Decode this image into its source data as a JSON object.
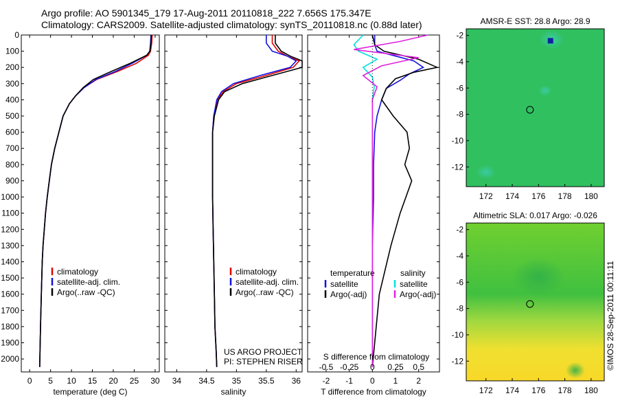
{
  "header": {
    "title_line1": "Argo profile: AO 5901345_179 17-Aug-2011 20110818_222 7.656S 175.347E",
    "title_line2": "Climatology: CARS2009. Satellite-adjusted climatology: synTS_20110818.nc (0.88d later)"
  },
  "colors": {
    "climatology": "#e00000",
    "satellite": "#1010e0",
    "argo": "#000000",
    "salinity_satellite": "#00e0e0",
    "salinity_argo": "#e020e0"
  },
  "chart_data": [
    {
      "type": "line",
      "panel": "temperature",
      "xlabel": "temperature (deg C)",
      "xlim": [
        -2,
        31
      ],
      "xticks": [
        0,
        5,
        10,
        15,
        20,
        25,
        30
      ],
      "ylim": [
        2080,
        0
      ],
      "yticks": [
        0,
        100,
        200,
        300,
        400,
        500,
        600,
        700,
        800,
        900,
        1000,
        1100,
        1200,
        1300,
        1400,
        1500,
        1600,
        1700,
        1800,
        1900,
        2000
      ],
      "legend": [
        "climatology",
        "satellite-adj. clim.",
        "Argo(..raw -QC)"
      ],
      "series": [
        {
          "name": "climatology",
          "x": [
            29.3,
            29.2,
            28.9,
            28.4,
            25.5,
            21,
            16,
            13,
            11,
            9.5,
            8,
            7,
            6,
            5.2,
            4.7,
            4.2,
            3.8,
            3.5,
            3.2,
            3.0,
            2.8,
            2.6,
            2.4
          ],
          "y": [
            0,
            50,
            100,
            125,
            175,
            225,
            275,
            325,
            375,
            425,
            500,
            600,
            700,
            800,
            900,
            1000,
            1100,
            1200,
            1300,
            1400,
            1600,
            1800,
            2050
          ]
        },
        {
          "name": "satellite-adj. clim.",
          "x": [
            29.0,
            28.9,
            28.7,
            28.0,
            24.5,
            20.5,
            15.8,
            13,
            11,
            9.5,
            8,
            7,
            6,
            5.2,
            4.7,
            4.2,
            3.8,
            3.5,
            3.2,
            3.0,
            2.8,
            2.6,
            2.4
          ],
          "y": [
            0,
            50,
            100,
            125,
            175,
            225,
            275,
            325,
            375,
            425,
            500,
            600,
            700,
            800,
            900,
            1000,
            1100,
            1200,
            1300,
            1400,
            1600,
            1800,
            2050
          ]
        },
        {
          "name": "Argo(..raw -QC)",
          "x": [
            29.1,
            29.0,
            28.8,
            28.0,
            24.0,
            19.5,
            15.2,
            12.8,
            11,
            9.5,
            8,
            7,
            6,
            5.2,
            4.7,
            4.2,
            3.8,
            3.5,
            3.2,
            3.0,
            2.8,
            2.6,
            2.4
          ],
          "y": [
            0,
            50,
            100,
            125,
            175,
            225,
            275,
            325,
            375,
            425,
            500,
            600,
            700,
            800,
            900,
            1000,
            1100,
            1200,
            1300,
            1400,
            1600,
            1800,
            2050
          ]
        }
      ]
    },
    {
      "type": "line",
      "panel": "salinity",
      "xlabel": "salinity",
      "xlim": [
        33.8,
        36.1
      ],
      "xticks": [
        34,
        34.5,
        35,
        35.5,
        36
      ],
      "xtick_labels": [
        "34",
        "34.5",
        "35",
        "35.5",
        "36"
      ],
      "legend": [
        "climatology",
        "satellite-adj. clim.",
        "Argo(..raw -QC)"
      ],
      "annotation": [
        "US ARGO PROJECT",
        "PI: STEPHEN RISER"
      ],
      "series": [
        {
          "name": "climatology",
          "x": [
            35.6,
            35.6,
            35.7,
            35.85,
            36.05,
            35.95,
            35.5,
            35.0,
            34.78,
            34.68,
            34.62,
            34.6,
            34.6,
            34.6,
            34.6,
            34.61,
            34.62,
            34.63,
            34.64,
            34.66,
            34.67
          ],
          "y": [
            0,
            50,
            100,
            130,
            160,
            200,
            250,
            300,
            350,
            400,
            500,
            600,
            700,
            800,
            1000,
            1200,
            1400,
            1600,
            1800,
            1950,
            2050
          ]
        },
        {
          "name": "satellite-adj. clim.",
          "x": [
            35.5,
            35.5,
            35.6,
            35.85,
            36.0,
            35.9,
            35.4,
            34.95,
            34.75,
            34.67,
            34.62,
            34.6,
            34.6,
            34.6,
            34.6,
            34.61,
            34.62,
            34.63,
            34.64,
            34.66,
            34.67
          ],
          "y": [
            0,
            50,
            100,
            130,
            160,
            200,
            250,
            300,
            350,
            400,
            500,
            600,
            700,
            800,
            1000,
            1200,
            1400,
            1600,
            1800,
            1950,
            2050
          ]
        },
        {
          "name": "Argo(..raw -QC)",
          "x": [
            35.65,
            35.65,
            35.75,
            35.9,
            36.1,
            36.1,
            35.6,
            35.1,
            34.8,
            34.7,
            34.63,
            34.6,
            34.6,
            34.6,
            34.6,
            34.61,
            34.62,
            34.63,
            34.64,
            34.66,
            34.67
          ],
          "y": [
            0,
            50,
            100,
            130,
            160,
            200,
            250,
            300,
            350,
            400,
            500,
            600,
            700,
            800,
            1000,
            1200,
            1400,
            1600,
            1800,
            1950,
            2050
          ]
        }
      ]
    },
    {
      "type": "line",
      "panel": "difference",
      "xlabel": "T difference from climatology",
      "xlabel2": "S difference from climatology",
      "xlim": [
        -2.8,
        2.9
      ],
      "xticks": [
        -2,
        -1,
        0,
        1,
        2
      ],
      "xticks_s": [
        -0.5,
        -0.25,
        0,
        0.25,
        0.5
      ],
      "xticks_s_labels": [
        "-0.5",
        "-0.25",
        "0",
        "0.25",
        "0.5"
      ],
      "legend_temperature_header": "temperature",
      "legend_salinity_header": "salinity",
      "legend_temperature": [
        "satellite",
        "Argo(-adj)"
      ],
      "legend_salinity": [
        "satellite",
        "Argo(-adj)"
      ],
      "series": [
        {
          "name": "temperature satellite",
          "x": [
            0.1,
            0.1,
            0.2,
            1.0,
            1.8,
            2.2,
            1.6,
            1.2,
            0.6,
            0.4,
            0.2,
            0.1,
            0.05,
            0.05,
            0.0,
            0.0,
            0.0,
            0.0
          ],
          "y": [
            0,
            60,
            100,
            130,
            160,
            200,
            240,
            280,
            330,
            400,
            500,
            600,
            800,
            1000,
            1300,
            1600,
            1900,
            2050
          ]
        },
        {
          "name": "temperature Argo(-adj)",
          "x": [
            0.0,
            0.1,
            0.5,
            2.0,
            2.8,
            1.8,
            1.0,
            0.6,
            0.4,
            0.9,
            1.5,
            1.6,
            1.4,
            1.7,
            1.2,
            0.8,
            0.3,
            0.0
          ],
          "y": [
            0,
            60,
            100,
            150,
            200,
            230,
            270,
            330,
            400,
            500,
            600,
            700,
            800,
            900,
            1100,
            1300,
            1600,
            2050
          ]
        },
        {
          "name": "salinity satellite",
          "x": [
            -0.1,
            -0.2,
            -0.15,
            0.05,
            -0.1,
            0.0,
            0.02,
            0.0,
            0.0,
            0.0,
            0.0,
            0.0
          ],
          "y": [
            0,
            60,
            100,
            150,
            200,
            260,
            320,
            400,
            600,
            1000,
            1500,
            2050
          ]
        },
        {
          "name": "salinity Argo(-adj)",
          "x": [
            0.6,
            0.3,
            -0.2,
            0.5,
            0.1,
            -0.1,
            0.05,
            0.0,
            0.0,
            0.0,
            0.0,
            0.0
          ],
          "y": [
            0,
            40,
            90,
            140,
            190,
            250,
            320,
            400,
            600,
            1000,
            1500,
            2050
          ]
        }
      ]
    },
    {
      "type": "heatmap",
      "panel": "AMSR-E SST",
      "title": "AMSR-E SST: 28.8 Argo: 28.9",
      "xlim": [
        170.5,
        181
      ],
      "ylim": [
        -13.5,
        -1.5
      ],
      "xticks": [
        172,
        174,
        176,
        178,
        180
      ],
      "yticks": [
        -2,
        -4,
        -6,
        -8,
        -10,
        -12
      ],
      "argo_position": {
        "lon": 175.347,
        "lat": -7.656
      },
      "color": "#30c060"
    },
    {
      "type": "heatmap",
      "panel": "Altimetric SLA",
      "title": "Altimetric SLA: 0.017 Argo: -0.026",
      "xlim": [
        170.5,
        181
      ],
      "ylim": [
        -13.5,
        -1.5
      ],
      "xticks": [
        172,
        174,
        176,
        178,
        180
      ],
      "yticks": [
        -2,
        -4,
        -6,
        -8,
        -10,
        -12
      ],
      "argo_position": {
        "lon": 175.347,
        "lat": -7.656
      },
      "color": "#60d040",
      "gradient_bottom": "#f0e040"
    }
  ],
  "footer_stamp": "©IMOS 28-Sep-2011 00:11:11"
}
